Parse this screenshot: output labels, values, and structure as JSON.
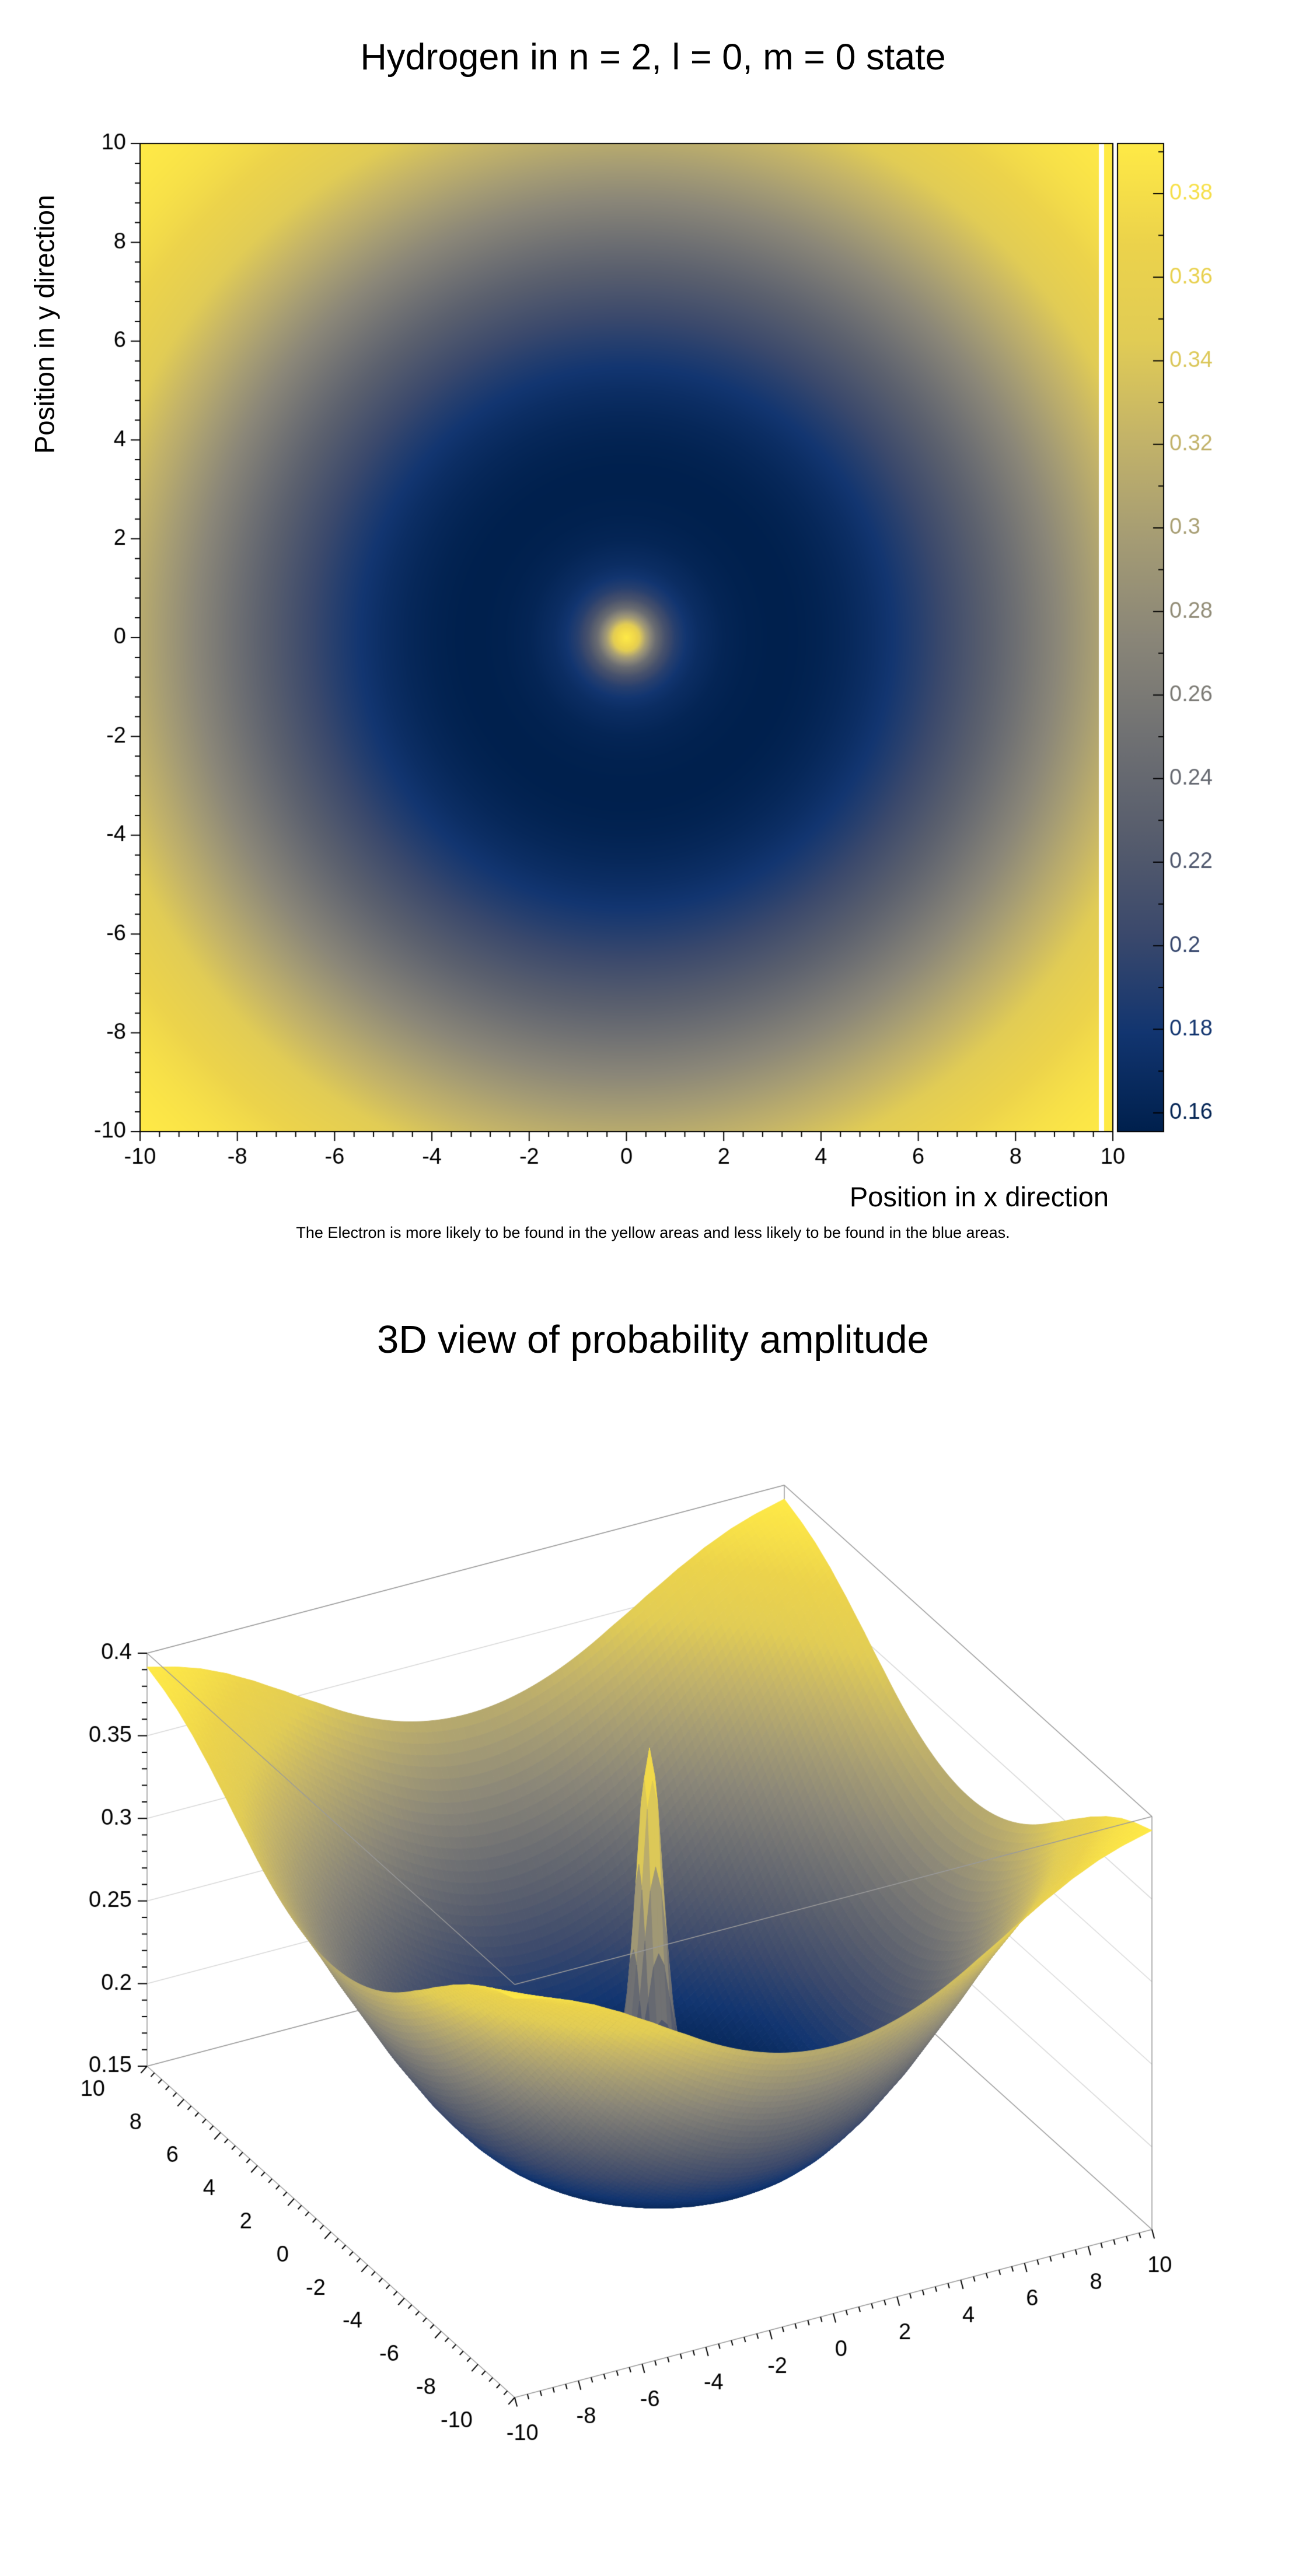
{
  "page": {
    "background": "#ffffff"
  },
  "chart_data": [
    {
      "type": "heatmap",
      "title": "Hydrogen in n = 2, l = 0, m = 0 state",
      "xlabel": "Position in x direction",
      "ylabel": "Position in y direction",
      "caption": "The Electron is more likely to be found in the yellow areas and less likely to be found in the blue areas.",
      "xlim": [
        -10,
        10
      ],
      "ylim": [
        -10,
        10
      ],
      "zlim": [
        0.1555,
        0.392
      ],
      "x_ticks": [
        -10,
        -8,
        -6,
        -4,
        -2,
        0,
        2,
        4,
        6,
        8,
        10
      ],
      "y_ticks": [
        -10,
        -8,
        -6,
        -4,
        -2,
        0,
        2,
        4,
        6,
        8,
        10
      ],
      "minor_divisions": 5,
      "grid": false,
      "legend": "colorbar-right",
      "colorbar": {
        "ticks": [
          0.16,
          0.18,
          0.2,
          0.22,
          0.24,
          0.26,
          0.28,
          0.3,
          0.32,
          0.34,
          0.36,
          0.38
        ],
        "minor_step": 0.01
      },
      "radial_profile": {
        "description": "plotted value as a function of radius r = sqrt(x^2+y^2); yellow high, blue low",
        "r": [
          0,
          0.2,
          0.4,
          0.6,
          0.8,
          1,
          1.25,
          1.5,
          2,
          2.5,
          3,
          3.5,
          4,
          4.5,
          5,
          5.5,
          6,
          6.5,
          7,
          7.5,
          8,
          8.5,
          9,
          9.5,
          10,
          10.5,
          11,
          11.5,
          12,
          12.5,
          13,
          13.5,
          14.2
        ],
        "value": [
          0.392,
          0.37,
          0.3,
          0.245,
          0.212,
          0.192,
          0.178,
          0.17,
          0.161,
          0.157,
          0.1555,
          0.156,
          0.159,
          0.164,
          0.171,
          0.18,
          0.191,
          0.203,
          0.217,
          0.231,
          0.247,
          0.263,
          0.279,
          0.296,
          0.312,
          0.327,
          0.342,
          0.355,
          0.366,
          0.375,
          0.382,
          0.387,
          0.392
        ]
      },
      "colormap": {
        "name": "cividis",
        "stops": [
          {
            "t": 0.0,
            "color": "#00204d"
          },
          {
            "t": 0.1,
            "color": "#123570"
          },
          {
            "t": 0.2,
            "color": "#3b496c"
          },
          {
            "t": 0.3,
            "color": "#575d6d"
          },
          {
            "t": 0.4,
            "color": "#707173"
          },
          {
            "t": 0.5,
            "color": "#8a8678"
          },
          {
            "t": 0.6,
            "color": "#a59c74"
          },
          {
            "t": 0.7,
            "color": "#c3b369"
          },
          {
            "t": 0.8,
            "color": "#e1cc55"
          },
          {
            "t": 0.9,
            "color": "#ecd34b"
          },
          {
            "t": 1.0,
            "color": "#ffea46"
          }
        ]
      }
    },
    {
      "type": "surface3d",
      "title": "3D view of probability amplitude",
      "xlim": [
        -10,
        10
      ],
      "ylim": [
        -10,
        10
      ],
      "zlim": [
        0.15,
        0.4
      ],
      "x_ticks": [
        -10,
        -8,
        -6,
        -4,
        -2,
        0,
        2,
        4,
        6,
        8,
        10
      ],
      "y_ticks": [
        -10,
        -8,
        -6,
        -4,
        -2,
        0,
        2,
        4,
        6,
        8,
        10
      ],
      "z_ticks": [
        0.15,
        0.2,
        0.25,
        0.3,
        0.35,
        0.4
      ],
      "grid": "horizontal z gridlines on back walls",
      "surface_source": "same radial_profile and colormap as the heatmap above",
      "frame_color": "#9a9a9a"
    }
  ]
}
